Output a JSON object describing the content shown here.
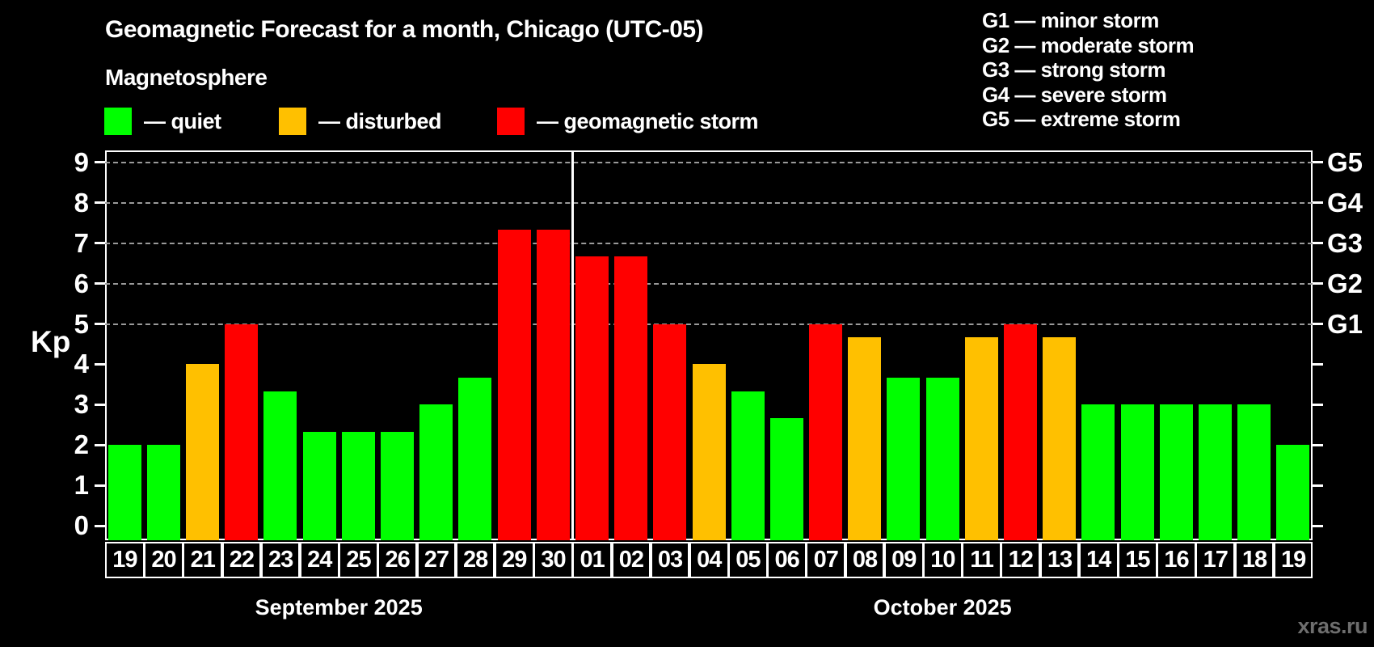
{
  "title": "Geomagnetic Forecast for a month, Chicago (UTC-05)",
  "watermark": "xras.ru",
  "legend": {
    "title": "Magnetosphere",
    "items": [
      {
        "key": "quiet",
        "color": "#00ff00",
        "label": "— quiet"
      },
      {
        "key": "disturbed",
        "color": "#ffc000",
        "label": "— disturbed"
      },
      {
        "key": "storm",
        "color": "#ff0000",
        "label": "— geomagnetic storm"
      }
    ]
  },
  "storm_scale_legend": [
    "G1 — minor storm",
    "G2 — moderate storm",
    "G3 — strong storm",
    "G4 — severe storm",
    "G5 — extreme storm"
  ],
  "chart_data": {
    "type": "bar",
    "title": "Geomagnetic Forecast for a month, Chicago (UTC-05)",
    "ylabel": "Kp",
    "ylim": [
      0,
      9
    ],
    "yticks": [
      0,
      1,
      2,
      3,
      4,
      5,
      6,
      7,
      8,
      9
    ],
    "gridlines_at": [
      5,
      6,
      7,
      8,
      9
    ],
    "grid": "dashed horizontal at storm levels only",
    "legend_position": "top-left and top-right",
    "right_axis_labels": [
      {
        "label": "G1",
        "kp": 5
      },
      {
        "label": "G2",
        "kp": 6
      },
      {
        "label": "G3",
        "kp": 7
      },
      {
        "label": "G4",
        "kp": 8
      },
      {
        "label": "G5",
        "kp": 9
      }
    ],
    "months": [
      {
        "label": "September 2025",
        "days": 12
      },
      {
        "label": "October 2025",
        "days": 19
      }
    ],
    "categories": [
      "19",
      "20",
      "21",
      "22",
      "23",
      "24",
      "25",
      "26",
      "27",
      "28",
      "29",
      "30",
      "01",
      "02",
      "03",
      "04",
      "05",
      "06",
      "07",
      "08",
      "09",
      "10",
      "11",
      "12",
      "13",
      "14",
      "15",
      "16",
      "17",
      "18",
      "19"
    ],
    "values": [
      2,
      2,
      4,
      5,
      3.33,
      2.33,
      2.33,
      2.33,
      3,
      3.67,
      7.33,
      7.33,
      6.67,
      6.67,
      5,
      4,
      3.33,
      2.67,
      5,
      4.67,
      3.67,
      3.67,
      4.67,
      5,
      4.67,
      3,
      3,
      3,
      3,
      3,
      2
    ],
    "statuses": [
      "quiet",
      "quiet",
      "disturbed",
      "storm",
      "quiet",
      "quiet",
      "quiet",
      "quiet",
      "quiet",
      "quiet",
      "storm",
      "storm",
      "storm",
      "storm",
      "storm",
      "disturbed",
      "quiet",
      "quiet",
      "storm",
      "disturbed",
      "quiet",
      "quiet",
      "disturbed",
      "storm",
      "disturbed",
      "quiet",
      "quiet",
      "quiet",
      "quiet",
      "quiet",
      "quiet"
    ],
    "status_colors": {
      "quiet": "#00ff00",
      "disturbed": "#ffc000",
      "storm": "#ff0000"
    }
  }
}
